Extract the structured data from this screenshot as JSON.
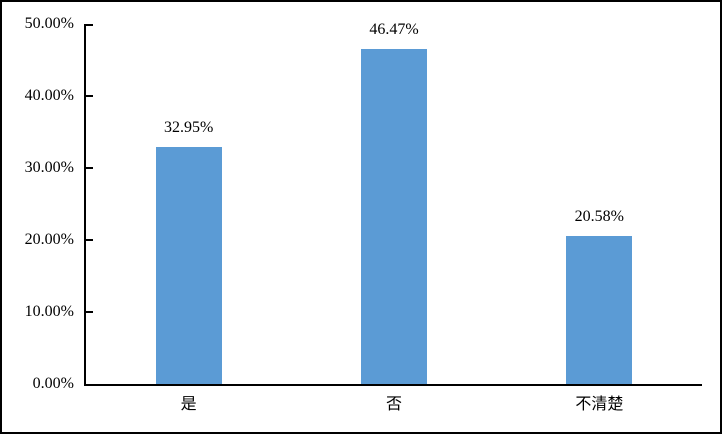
{
  "chart_data": {
    "type": "bar",
    "title": "",
    "xlabel": "",
    "ylabel": "",
    "categories": [
      "是",
      "否",
      "不清楚"
    ],
    "values": [
      32.95,
      46.47,
      20.58
    ],
    "value_labels": [
      "32.95%",
      "46.47%",
      "20.58%"
    ],
    "ytick_values": [
      0,
      10,
      20,
      30,
      40,
      50
    ],
    "ytick_labels": [
      "0.00%",
      "10.00%",
      "20.00%",
      "30.00%",
      "40.00%",
      "50.00%"
    ],
    "ylim": [
      0,
      50
    ],
    "grid": false,
    "legend": false,
    "bar_color": "#5B9BD5",
    "axis_color": "#000000",
    "text_color": "#000000",
    "frame_border_color": "#000000"
  }
}
